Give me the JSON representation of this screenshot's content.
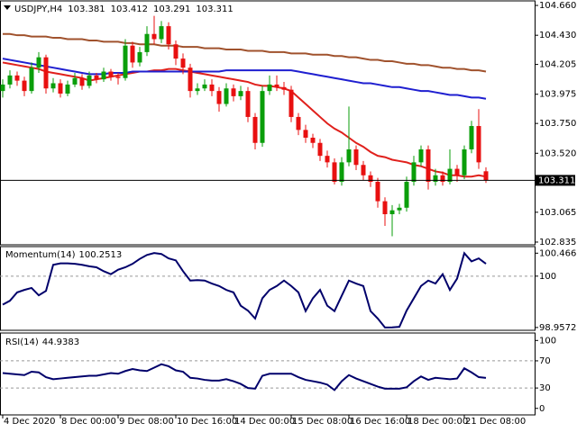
{
  "chart_data": [
    {
      "type": "candlestick",
      "title": "USDJPY,H4",
      "categories": [
        "4 Dec 2020",
        null,
        null,
        null,
        null,
        null,
        null,
        null,
        "8 Dec 00:00",
        null,
        null,
        null,
        null,
        null,
        null,
        null,
        "9 Dec 08:00",
        null,
        null,
        null,
        null,
        null,
        null,
        null,
        "10 Dec 16:00",
        null,
        null,
        null,
        null,
        null,
        null,
        null,
        "14 Dec 00:00",
        null,
        null,
        null,
        null,
        null,
        null,
        null,
        "15 Dec 08:00",
        null,
        null,
        null,
        null,
        null,
        null,
        null,
        "16 Dec 16:00",
        null,
        null,
        null,
        null,
        null,
        null,
        null,
        "18 Dec 00:00",
        null,
        null,
        null,
        null,
        null,
        null,
        null,
        "21 Dec 08:00",
        null,
        null,
        null
      ],
      "open": [
        104.0,
        104.05,
        104.12,
        104.08,
        104.0,
        104.18,
        104.26,
        104.02,
        104.06,
        103.98,
        104.05,
        104.1,
        104.04,
        104.12,
        104.09,
        104.15,
        104.11,
        104.1,
        104.35,
        104.22,
        104.3,
        104.44,
        104.4,
        104.5,
        104.36,
        104.25,
        104.18,
        104.0,
        104.02,
        104.05,
        104.0,
        103.9,
        104.02,
        103.96,
        104.0,
        103.8,
        103.6,
        104.0,
        104.05,
        104.03,
        104.01,
        103.8,
        103.7,
        103.64,
        103.6,
        103.5,
        103.45,
        103.3,
        103.45,
        103.55,
        103.43,
        103.35,
        103.3,
        103.15,
        103.05,
        103.08,
        103.1,
        103.3,
        103.45,
        103.55,
        103.3,
        103.35,
        103.3,
        103.4,
        103.35,
        103.55,
        103.73,
        103.381
      ],
      "high": [
        104.09,
        104.16,
        104.15,
        104.11,
        104.22,
        104.3,
        104.28,
        104.1,
        104.09,
        104.08,
        104.14,
        104.13,
        104.15,
        104.14,
        104.18,
        104.17,
        104.14,
        104.4,
        104.38,
        104.34,
        104.5,
        104.58,
        104.54,
        104.53,
        104.39,
        104.29,
        104.21,
        104.06,
        104.09,
        104.09,
        104.03,
        104.06,
        104.05,
        104.04,
        104.03,
        103.83,
        104.04,
        104.12,
        104.12,
        104.07,
        104.04,
        103.83,
        103.74,
        103.67,
        103.63,
        103.54,
        103.48,
        103.49,
        103.88,
        103.58,
        103.46,
        103.38,
        103.33,
        103.18,
        103.12,
        103.13,
        103.34,
        103.5,
        103.58,
        103.58,
        103.4,
        103.38,
        103.55,
        103.43,
        103.58,
        103.77,
        103.86,
        103.412
      ],
      "low": [
        103.95,
        104.02,
        104.04,
        103.96,
        103.98,
        104.14,
        103.98,
        103.99,
        103.95,
        103.96,
        104.03,
        104.01,
        104.02,
        104.06,
        104.07,
        104.08,
        104.05,
        104.08,
        104.18,
        104.19,
        104.27,
        104.36,
        104.37,
        104.32,
        104.2,
        104.13,
        103.95,
        103.97,
        104.0,
        103.96,
        103.84,
        103.88,
        103.92,
        103.93,
        103.76,
        103.55,
        103.57,
        103.97,
        104.0,
        103.97,
        103.76,
        103.66,
        103.6,
        103.56,
        103.46,
        103.41,
        103.28,
        103.27,
        103.42,
        103.39,
        103.31,
        103.26,
        103.1,
        102.96,
        102.88,
        103.05,
        103.07,
        103.27,
        103.42,
        103.24,
        103.27,
        103.27,
        103.28,
        103.3,
        103.32,
        103.52,
        103.4,
        103.291
      ],
      "close": [
        104.05,
        104.12,
        104.08,
        104.0,
        104.18,
        104.26,
        104.02,
        104.06,
        103.98,
        104.05,
        104.1,
        104.04,
        104.12,
        104.09,
        104.15,
        104.11,
        104.1,
        104.35,
        104.22,
        104.3,
        104.44,
        104.4,
        104.5,
        104.36,
        104.25,
        104.18,
        104.0,
        104.02,
        104.05,
        104.0,
        103.9,
        104.02,
        103.96,
        104.0,
        103.8,
        103.6,
        104.0,
        104.05,
        104.03,
        104.01,
        103.8,
        103.7,
        103.64,
        103.6,
        103.5,
        103.45,
        103.3,
        103.45,
        103.55,
        103.43,
        103.35,
        103.3,
        103.15,
        103.05,
        103.08,
        103.1,
        103.3,
        103.45,
        103.55,
        103.3,
        103.35,
        103.3,
        103.4,
        103.35,
        103.55,
        103.73,
        103.45,
        103.311
      ],
      "up_color": "#0a9e0a",
      "down_color": "#e81010",
      "lines": [
        {
          "color": "#e0201c",
          "values": [
            104.22,
            104.21,
            104.2,
            104.19,
            104.18,
            104.17,
            104.15,
            104.14,
            104.13,
            104.12,
            104.11,
            104.1,
            104.08,
            104.09,
            104.1,
            104.11,
            104.12,
            104.13,
            104.14,
            104.15,
            104.15,
            104.16,
            104.16,
            104.17,
            104.17,
            104.16,
            104.15,
            104.14,
            104.13,
            104.12,
            104.11,
            104.1,
            104.09,
            104.08,
            104.07,
            104.05,
            104.04,
            104.04,
            104.03,
            104.02,
            104.0,
            103.95,
            103.9,
            103.85,
            103.8,
            103.75,
            103.71,
            103.68,
            103.64,
            103.6,
            103.57,
            103.53,
            103.5,
            103.49,
            103.47,
            103.46,
            103.45,
            103.43,
            103.42,
            103.4,
            103.38,
            103.37,
            103.35,
            103.35,
            103.34,
            103.34,
            103.35,
            103.34
          ]
        },
        {
          "color": "#1f1fd0",
          "values": [
            104.25,
            104.24,
            104.23,
            104.22,
            104.21,
            104.2,
            104.19,
            104.18,
            104.17,
            104.16,
            104.15,
            104.14,
            104.13,
            104.13,
            104.13,
            104.14,
            104.14,
            104.14,
            104.15,
            104.15,
            104.15,
            104.15,
            104.15,
            104.15,
            104.15,
            104.15,
            104.15,
            104.15,
            104.15,
            104.15,
            104.15,
            104.16,
            104.16,
            104.16,
            104.16,
            104.16,
            104.16,
            104.16,
            104.16,
            104.16,
            104.16,
            104.15,
            104.14,
            104.13,
            104.12,
            104.11,
            104.1,
            104.09,
            104.08,
            104.07,
            104.06,
            104.06,
            104.05,
            104.04,
            104.03,
            104.03,
            104.02,
            104.01,
            104.0,
            104.0,
            103.99,
            103.98,
            103.97,
            103.97,
            103.96,
            103.95,
            103.95,
            103.94
          ]
        },
        {
          "color": "#a0522d",
          "values": [
            104.44,
            104.44,
            104.43,
            104.43,
            104.42,
            104.42,
            104.42,
            104.41,
            104.41,
            104.4,
            104.4,
            104.4,
            104.39,
            104.39,
            104.38,
            104.38,
            104.38,
            104.37,
            104.37,
            104.36,
            104.36,
            104.36,
            104.35,
            104.35,
            104.35,
            104.34,
            104.34,
            104.34,
            104.33,
            104.33,
            104.33,
            104.32,
            104.32,
            104.32,
            104.31,
            104.31,
            104.31,
            104.3,
            104.3,
            104.3,
            104.29,
            104.29,
            104.29,
            104.28,
            104.28,
            104.28,
            104.27,
            104.27,
            104.26,
            104.26,
            104.25,
            104.24,
            104.24,
            104.23,
            104.23,
            104.22,
            104.21,
            104.21,
            104.2,
            104.2,
            104.19,
            104.18,
            104.18,
            104.17,
            104.17,
            104.16,
            104.16,
            104.15
          ]
        }
      ],
      "ylim": [
        102.814,
        104.695
      ],
      "yticks": [
        {
          "value": 104.66,
          "label": "104.660"
        },
        {
          "value": 104.43,
          "label": "104.430"
        },
        104.205,
        103.975,
        {
          "value": 103.75,
          "label": "103.750"
        },
        {
          "value": 103.52,
          "label": "103.520"
        },
        103.065,
        102.835
      ],
      "last_price_line": true
    },
    {
      "type": "line",
      "title": "Momentum(14)",
      "color": "#00006b",
      "values": [
        99.42,
        99.5,
        99.67,
        99.72,
        99.76,
        99.61,
        99.7,
        100.23,
        100.26,
        100.26,
        100.25,
        100.23,
        100.2,
        100.18,
        100.1,
        100.04,
        100.13,
        100.18,
        100.25,
        100.35,
        100.43,
        100.47,
        100.45,
        100.36,
        100.32,
        100.1,
        99.91,
        99.92,
        99.91,
        99.85,
        99.8,
        99.72,
        99.67,
        99.4,
        99.3,
        99.14,
        99.55,
        99.72,
        99.8,
        99.91,
        99.8,
        99.67,
        99.29,
        99.55,
        99.72,
        99.4,
        99.29,
        99.6,
        99.91,
        99.85,
        99.8,
        99.29,
        99.14,
        98.9572,
        98.96,
        98.97,
        99.3,
        99.55,
        99.8,
        99.91,
        99.85,
        100.04,
        99.72,
        99.95,
        100.4665,
        100.3,
        100.36,
        100.2513
      ],
      "ylim": [
        98.9,
        100.6
      ],
      "yticks": [
        100.4665,
        100,
        98.9572
      ],
      "levels": [
        100
      ]
    },
    {
      "type": "line",
      "title": "RSI(14)",
      "color": "#00006b",
      "values": [
        52,
        51,
        50,
        49,
        54,
        53,
        46,
        43,
        44,
        45,
        46,
        47,
        48,
        48,
        50,
        52,
        51,
        55,
        58,
        56,
        55,
        60,
        65,
        62,
        56,
        54,
        45,
        44,
        42,
        41,
        41,
        43,
        40,
        36,
        30,
        29,
        48,
        51,
        51,
        51,
        51,
        46,
        42,
        40,
        38,
        35,
        27,
        40,
        49,
        44,
        40,
        36,
        32,
        29,
        29,
        29,
        31,
        40,
        47,
        42,
        45,
        44,
        43,
        44,
        59,
        53,
        46,
        44.9383
      ],
      "ylim": [
        -9.6,
        111
      ],
      "yticks": [
        100,
        70,
        30,
        0
      ],
      "levels": [
        70,
        30
      ]
    }
  ]
}
